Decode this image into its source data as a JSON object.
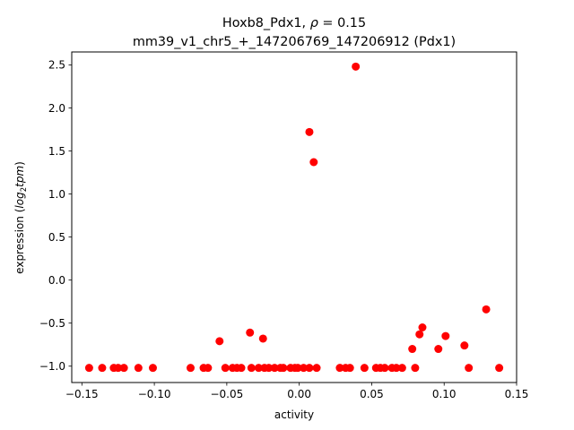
{
  "chart_data": {
    "type": "scatter",
    "title_line1": "Hoxb8_Pdx1, ",
    "title_rho": "ρ",
    "title_rho_suffix": " = 0.15",
    "title_line2": "mm39_v1_chr5_+_147206769_147206912 (Pdx1)",
    "xlabel": "activity",
    "ylabel_prefix": "expression (",
    "ylabel_log": "log",
    "ylabel_sub": "2",
    "ylabel_tpm": "tpm",
    "ylabel_suffix": ")",
    "xlim": [
      -0.157,
      0.15
    ],
    "ylim": [
      -1.19,
      2.65
    ],
    "x_ticks": [
      -0.15,
      -0.1,
      -0.05,
      0.0,
      0.05,
      0.1,
      0.15
    ],
    "x_tick_labels": [
      "−0.15",
      "−0.10",
      "−0.05",
      "0.00",
      "0.05",
      "0.10",
      "0.15"
    ],
    "y_ticks": [
      -1.0,
      -0.5,
      0.0,
      0.5,
      1.0,
      1.5,
      2.0,
      2.5
    ],
    "y_tick_labels": [
      "−1.0",
      "−0.5",
      "0.0",
      "0.5",
      "1.0",
      "1.5",
      "2.0",
      "2.5"
    ],
    "marker_color": "#ff0000",
    "grid": false,
    "points": [
      {
        "x": -0.145,
        "y": -1.02
      },
      {
        "x": -0.136,
        "y": -1.02
      },
      {
        "x": -0.128,
        "y": -1.02
      },
      {
        "x": -0.125,
        "y": -1.02
      },
      {
        "x": -0.121,
        "y": -1.02
      },
      {
        "x": -0.111,
        "y": -1.02
      },
      {
        "x": -0.101,
        "y": -1.02
      },
      {
        "x": -0.075,
        "y": -1.02
      },
      {
        "x": -0.066,
        "y": -1.02
      },
      {
        "x": -0.063,
        "y": -1.02
      },
      {
        "x": -0.055,
        "y": -0.71
      },
      {
        "x": -0.051,
        "y": -1.02
      },
      {
        "x": -0.046,
        "y": -1.02
      },
      {
        "x": -0.043,
        "y": -1.02
      },
      {
        "x": -0.04,
        "y": -1.02
      },
      {
        "x": -0.034,
        "y": -0.61
      },
      {
        "x": -0.033,
        "y": -1.02
      },
      {
        "x": -0.028,
        "y": -1.02
      },
      {
        "x": -0.025,
        "y": -0.68
      },
      {
        "x": -0.024,
        "y": -1.02
      },
      {
        "x": -0.021,
        "y": -1.02
      },
      {
        "x": -0.017,
        "y": -1.02
      },
      {
        "x": -0.013,
        "y": -1.02
      },
      {
        "x": -0.011,
        "y": -1.02
      },
      {
        "x": -0.006,
        "y": -1.02
      },
      {
        "x": -0.003,
        "y": -1.02
      },
      {
        "x": -0.001,
        "y": -1.02
      },
      {
        "x": 0.003,
        "y": -1.02
      },
      {
        "x": 0.007,
        "y": 1.72
      },
      {
        "x": 0.007,
        "y": -1.02
      },
      {
        "x": 0.01,
        "y": 1.37
      },
      {
        "x": 0.012,
        "y": -1.02
      },
      {
        "x": 0.028,
        "y": -1.02
      },
      {
        "x": 0.032,
        "y": -1.02
      },
      {
        "x": 0.035,
        "y": -1.02
      },
      {
        "x": 0.039,
        "y": 2.48
      },
      {
        "x": 0.045,
        "y": -1.02
      },
      {
        "x": 0.053,
        "y": -1.02
      },
      {
        "x": 0.056,
        "y": -1.02
      },
      {
        "x": 0.059,
        "y": -1.02
      },
      {
        "x": 0.064,
        "y": -1.02
      },
      {
        "x": 0.067,
        "y": -1.02
      },
      {
        "x": 0.071,
        "y": -1.02
      },
      {
        "x": 0.078,
        "y": -0.8
      },
      {
        "x": 0.08,
        "y": -1.02
      },
      {
        "x": 0.083,
        "y": -0.63
      },
      {
        "x": 0.085,
        "y": -0.55
      },
      {
        "x": 0.096,
        "y": -0.8
      },
      {
        "x": 0.101,
        "y": -0.65
      },
      {
        "x": 0.114,
        "y": -0.76
      },
      {
        "x": 0.117,
        "y": -1.02
      },
      {
        "x": 0.129,
        "y": -0.34
      },
      {
        "x": 0.138,
        "y": -1.02
      }
    ]
  }
}
